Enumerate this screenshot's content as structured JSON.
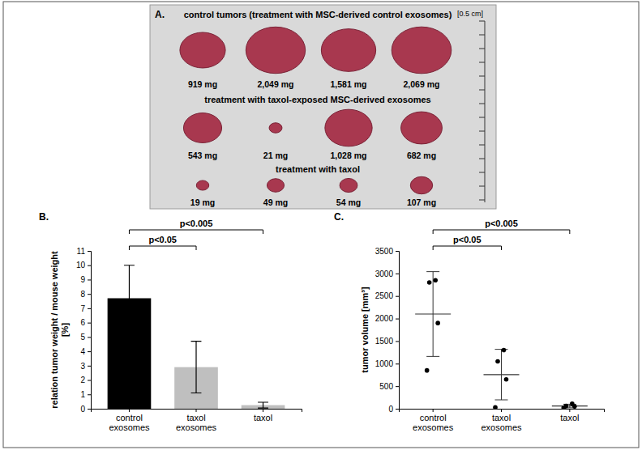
{
  "panel_a": {
    "panel": "A.",
    "scale_label": "[0.5 cm]",
    "groups": [
      {
        "title": "control tumors (treatment with MSC-derived control exosomes)",
        "weights": [
          919,
          2049,
          1581,
          2069
        ],
        "weight_labels": [
          "919 mg",
          "2,049 mg",
          "1,581 mg",
          "2,069 mg"
        ]
      },
      {
        "title": "treatment with taxol-exposed MSC-derived exosomes",
        "weights": [
          543,
          21,
          1028,
          682
        ],
        "weight_labels": [
          "543 mg",
          "21 mg",
          "1,028 mg",
          "682 mg"
        ]
      },
      {
        "title": "treatment with taxol",
        "weights": [
          19,
          49,
          54,
          107
        ],
        "weight_labels": [
          "19 mg",
          "49 mg",
          "54 mg",
          "107 mg"
        ]
      }
    ]
  },
  "chart_data": [
    {
      "panel": "B.",
      "type": "bar",
      "categories": [
        "control exosomes",
        "taxol exosomes",
        "taxol"
      ],
      "values": [
        7.7,
        2.9,
        0.25
      ],
      "errors": [
        2.3,
        1.8,
        0.2
      ],
      "colors": [
        "#000000",
        "#bfbfbf",
        "#bfbfbf"
      ],
      "y_label": "relation tumor weight / mouse weight [%]",
      "ylim": [
        0,
        11
      ],
      "yticks": [
        0,
        1,
        2,
        3,
        4,
        5,
        6,
        7,
        8,
        9,
        10,
        11
      ],
      "significance": [
        {
          "between": [
            "control exosomes",
            "taxol exosomes"
          ],
          "label": "p<0.05"
        },
        {
          "between": [
            "control exosomes",
            "taxol"
          ],
          "label": "p<0.005"
        }
      ]
    },
    {
      "panel": "C.",
      "type": "scatter",
      "categories": [
        "control exosomes",
        "taxol exosomes",
        "taxol"
      ],
      "points": [
        [
          2850,
          2800,
          1900,
          850
        ],
        [
          1300,
          1050,
          650,
          30
        ],
        [
          110,
          60,
          50,
          20
        ]
      ],
      "values": [
        2100,
        757,
        60
      ],
      "errors": [
        940,
        560,
        40
      ],
      "color": "#000000",
      "y_label": "tumor volume [mm³]",
      "ylim": [
        0,
        3500
      ],
      "yticks": [
        0,
        500,
        1000,
        1500,
        2000,
        2500,
        3000,
        3500
      ],
      "significance": [
        {
          "between": [
            "control exosomes",
            "taxol exosomes"
          ],
          "label": "p<0.05"
        },
        {
          "between": [
            "control exosomes",
            "taxol"
          ],
          "label": "p<0.005"
        }
      ]
    }
  ]
}
